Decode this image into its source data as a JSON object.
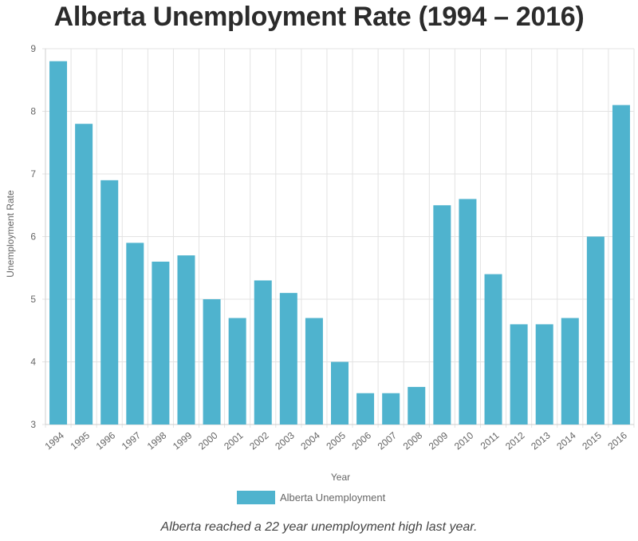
{
  "page": {
    "title": "Alberta Unemployment Rate (1994 – 2016)",
    "caption": "Alberta reached a 22 year unemployment high last year."
  },
  "chart_data": {
    "type": "bar",
    "title": "",
    "xlabel": "Year",
    "ylabel": "Unemployment Rate",
    "ylim": [
      3,
      9
    ],
    "yticks": [
      3,
      4,
      5,
      6,
      7,
      8,
      9
    ],
    "grid": true,
    "legend_position": "bottom",
    "categories": [
      "1994",
      "1995",
      "1996",
      "1997",
      "1998",
      "1999",
      "2000",
      "2001",
      "2002",
      "2003",
      "2004",
      "2005",
      "2006",
      "2007",
      "2008",
      "2009",
      "2010",
      "2011",
      "2012",
      "2013",
      "2014",
      "2015",
      "2016"
    ],
    "series": [
      {
        "name": "Alberta Unemployment",
        "color": "#4fb3ce",
        "values": [
          8.8,
          7.8,
          6.9,
          5.9,
          5.6,
          5.7,
          5.0,
          4.7,
          5.3,
          5.1,
          4.7,
          4.0,
          3.5,
          3.5,
          3.6,
          6.5,
          6.6,
          5.4,
          4.6,
          4.6,
          4.7,
          6.0,
          8.1
        ]
      }
    ]
  }
}
